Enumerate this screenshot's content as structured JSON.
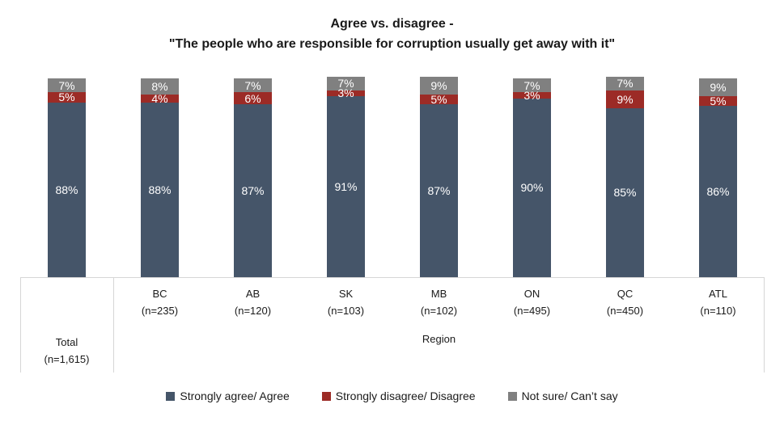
{
  "title": {
    "line1": "Agree vs. disagree -",
    "line2": "\"The people who are responsible for corruption usually get away with it\""
  },
  "chart_data": {
    "type": "bar",
    "stacked": true,
    "orientation": "vertical",
    "title": "Agree vs. disagree - \"The people who are responsible for corruption usually get away with it\"",
    "categories": [
      "Total",
      "BC",
      "AB",
      "SK",
      "MB",
      "ON",
      "QC",
      "ATL"
    ],
    "sample_sizes": [
      "(n=1,615)",
      "(n=235)",
      "(n=120)",
      "(n=103)",
      "(n=102)",
      "(n=495)",
      "(n=450)",
      "(n=110)"
    ],
    "series": [
      {
        "name": "Strongly agree/ Agree",
        "color": "#455569",
        "values": [
          88,
          88,
          87,
          91,
          87,
          90,
          85,
          86
        ]
      },
      {
        "name": "Strongly disagree/ Disagree",
        "color": "#9C2B26",
        "values": [
          5,
          4,
          6,
          3,
          5,
          3,
          9,
          5
        ]
      },
      {
        "name": "Not sure/ Can’t say",
        "color": "#808080",
        "values": [
          7,
          8,
          7,
          7,
          9,
          7,
          7,
          9
        ]
      }
    ],
    "value_suffix": "%",
    "group_axis_label": "Region",
    "ylim": [
      0,
      100
    ],
    "grid": false,
    "legend_position": "bottom"
  },
  "axis": {
    "region_label": "Region"
  },
  "legend": {
    "items": [
      {
        "label": "Strongly agree/ Agree",
        "color": "#455569"
      },
      {
        "label": "Strongly disagree/ Disagree",
        "color": "#9C2B26"
      },
      {
        "label": "Not sure/ Can’t say",
        "color": "#808080"
      }
    ]
  },
  "colors": {
    "agree": "#455569",
    "disagree": "#9C2B26",
    "not_sure": "#808080",
    "axis_line": "#d6d6d6",
    "bar_label": "#ffffff",
    "text": "#1a1a1a"
  }
}
